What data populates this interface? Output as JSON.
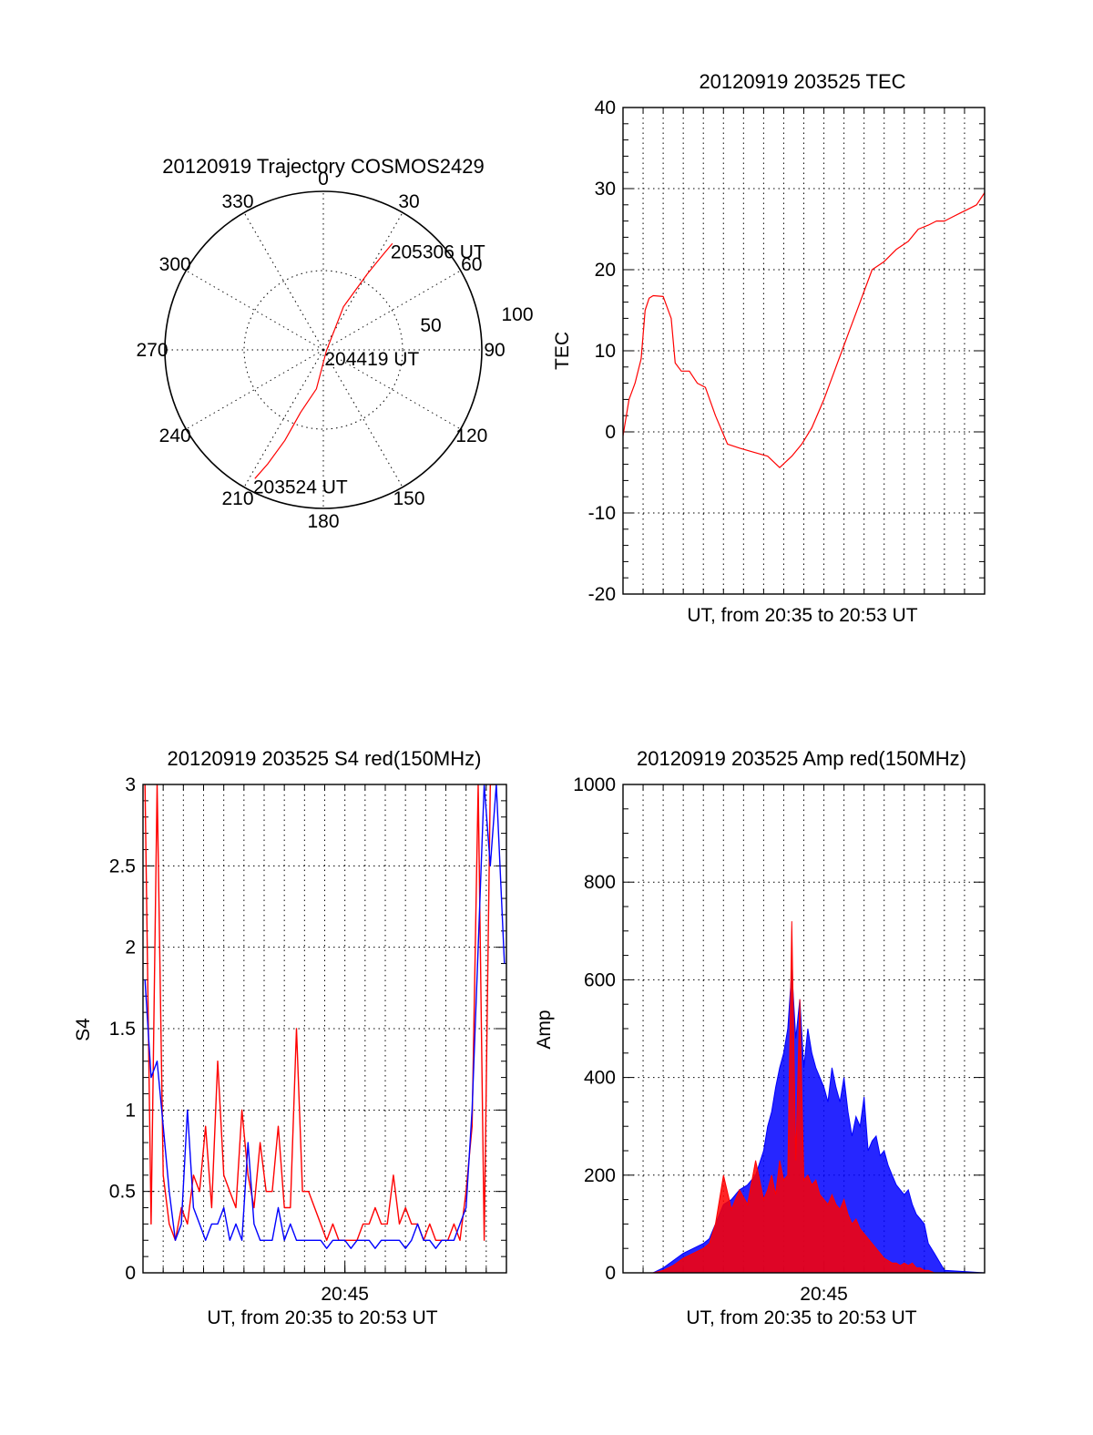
{
  "colors": {
    "red": "#ff0000",
    "blue": "#0000ff",
    "axis": "#000000",
    "grid": "#000000"
  },
  "chart_data": [
    {
      "id": "trajectory",
      "type": "polar",
      "title": "20120919 Trajectory COSMOS2429",
      "angle_labels": [
        "0",
        "30",
        "60",
        "90",
        "120",
        "150",
        "180",
        "210",
        "240",
        "270",
        "300",
        "330"
      ],
      "radius_labels": [
        "50",
        "100"
      ],
      "radius_max": 100,
      "grid": true,
      "series": [
        {
          "color": "red",
          "points_az_r": [
            [
              208,
              92
            ],
            [
              206,
              80
            ],
            [
              203,
              62
            ],
            [
              200,
              42
            ],
            [
              190,
              25
            ],
            [
              105,
              2
            ],
            [
              25,
              30
            ],
            [
              30,
              55
            ],
            [
              32,
              70
            ],
            [
              33,
              80
            ]
          ]
        }
      ],
      "annotations": [
        {
          "text": "203524 UT",
          "az": 208,
          "r": 92
        },
        {
          "text": "204419 UT",
          "az": 105,
          "r": 2
        },
        {
          "text": "205306 UT",
          "az": 33,
          "r": 80
        }
      ]
    },
    {
      "id": "tec",
      "type": "line",
      "title": "20120919 203525 TEC",
      "xlabel": "UT, from 20:35 to 20:53 UT",
      "ylabel": "TEC",
      "xlim": [
        0,
        18
      ],
      "ylim": [
        -20,
        40
      ],
      "y_ticks": [
        -20,
        -10,
        0,
        10,
        20,
        30,
        40
      ],
      "x_ticks": [],
      "grid": true,
      "series": [
        {
          "color": "red",
          "x": [
            0,
            0.3,
            0.6,
            0.9,
            1.0,
            1.1,
            1.3,
            1.5,
            2.0,
            2.4,
            2.6,
            2.9,
            3.3,
            3.7,
            4.1,
            4.6,
            5.2,
            5.8,
            6.5,
            7.2,
            7.8,
            8.4,
            8.9,
            9.4,
            10.0,
            10.6,
            11.2,
            11.8,
            12.4,
            13.0,
            13.6,
            14.2,
            14.7,
            15.2,
            15.6,
            16.0,
            16.4,
            16.8,
            17.2,
            17.6,
            18.0
          ],
          "y": [
            -0.5,
            4,
            6,
            9,
            12,
            15,
            16.5,
            16.8,
            16.7,
            14,
            8.5,
            7.5,
            7.5,
            6,
            5.5,
            2,
            -1.5,
            -2,
            -2.5,
            -3,
            -4.4,
            -3,
            -1.5,
            0.5,
            4,
            8,
            12,
            16,
            20,
            21,
            22.5,
            23.5,
            25,
            25.5,
            26,
            26,
            26.5,
            27,
            27.5,
            28,
            29.5
          ]
        }
      ]
    },
    {
      "id": "s4",
      "type": "line",
      "title": "20120919 203525 S4 red(150MHz)",
      "xlabel": "UT, from 20:35 to 20:53 UT",
      "ylabel": "S4",
      "xlim": [
        0,
        18
      ],
      "ylim": [
        0,
        3
      ],
      "y_ticks": [
        0,
        0.5,
        1,
        1.5,
        2,
        2.5,
        3
      ],
      "y_tick_labels": [
        "0",
        "0.5",
        "1",
        "1.5",
        "2",
        "2.5",
        "3"
      ],
      "x_ticks": [
        10
      ],
      "x_tick_labels": [
        "20:45"
      ],
      "grid": true,
      "series": [
        {
          "color": "red",
          "x": [
            0.1,
            0.4,
            0.7,
            1.0,
            1.3,
            1.6,
            1.9,
            2.2,
            2.5,
            2.8,
            3.1,
            3.4,
            3.7,
            4.0,
            4.3,
            4.6,
            4.9,
            5.2,
            5.5,
            5.8,
            6.1,
            6.4,
            6.7,
            7.0,
            7.3,
            7.6,
            7.9,
            8.2,
            8.5,
            8.8,
            9.1,
            9.4,
            9.7,
            10.0,
            10.3,
            10.6,
            10.9,
            11.2,
            11.5,
            11.8,
            12.1,
            12.4,
            12.7,
            13.0,
            13.3,
            13.6,
            13.9,
            14.2,
            14.5,
            14.8,
            15.1,
            15.4,
            15.7,
            16.0,
            16.3,
            16.6,
            16.9,
            17.2,
            17.5
          ],
          "y": [
            3,
            0.3,
            3,
            0.6,
            0.3,
            0.2,
            0.4,
            0.3,
            0.6,
            0.5,
            0.9,
            0.4,
            1.3,
            0.6,
            0.5,
            0.4,
            1.0,
            0.6,
            0.4,
            0.8,
            0.5,
            0.5,
            0.9,
            0.4,
            0.4,
            1.5,
            0.5,
            0.5,
            0.4,
            0.3,
            0.2,
            0.3,
            0.2,
            0.2,
            0.2,
            0.2,
            0.3,
            0.3,
            0.4,
            0.3,
            0.3,
            0.6,
            0.3,
            0.4,
            0.3,
            0.3,
            0.2,
            0.3,
            0.2,
            0.2,
            0.2,
            0.3,
            0.2,
            0.5,
            0.9,
            3,
            0.2,
            3,
            3
          ]
        },
        {
          "color": "blue",
          "x": [
            0.1,
            0.4,
            0.7,
            1.0,
            1.3,
            1.6,
            1.9,
            2.2,
            2.5,
            2.8,
            3.1,
            3.4,
            3.7,
            4.0,
            4.3,
            4.6,
            4.9,
            5.2,
            5.5,
            5.8,
            6.1,
            6.4,
            6.7,
            7.0,
            7.3,
            7.6,
            7.9,
            8.2,
            8.5,
            8.8,
            9.1,
            9.4,
            9.7,
            10.0,
            10.3,
            10.6,
            10.9,
            11.2,
            11.5,
            11.8,
            12.1,
            12.4,
            12.7,
            13.0,
            13.3,
            13.6,
            13.9,
            14.2,
            14.5,
            14.8,
            15.1,
            15.4,
            15.7,
            16.0,
            16.3,
            16.6,
            16.9,
            17.2,
            17.5,
            17.9
          ],
          "y": [
            1.8,
            1.2,
            1.3,
            0.9,
            0.5,
            0.2,
            0.3,
            1.0,
            0.4,
            0.3,
            0.2,
            0.3,
            0.3,
            0.4,
            0.2,
            0.3,
            0.2,
            0.8,
            0.3,
            0.2,
            0.2,
            0.2,
            0.4,
            0.2,
            0.3,
            0.2,
            0.2,
            0.2,
            0.2,
            0.2,
            0.15,
            0.2,
            0.2,
            0.2,
            0.15,
            0.2,
            0.2,
            0.2,
            0.15,
            0.2,
            0.2,
            0.2,
            0.2,
            0.15,
            0.2,
            0.3,
            0.2,
            0.2,
            0.15,
            0.2,
            0.2,
            0.2,
            0.3,
            0.4,
            1.0,
            2.0,
            3,
            2.5,
            3,
            1.9
          ]
        }
      ]
    },
    {
      "id": "amp",
      "type": "line",
      "title": "20120919 203525 Amp red(150MHz)",
      "xlabel": "UT, from 20:35 to 20:53 UT",
      "ylabel": "Amp",
      "xlim": [
        0,
        18
      ],
      "ylim": [
        0,
        1000
      ],
      "y_ticks": [
        0,
        200,
        400,
        600,
        800,
        1000
      ],
      "x_ticks": [
        10
      ],
      "x_tick_labels": [
        "20:45"
      ],
      "grid": true,
      "series": [
        {
          "color": "blue",
          "x": [
            0,
            1.5,
            2.0,
            2.5,
            3.0,
            3.5,
            4.0,
            4.3,
            4.6,
            5.0,
            5.4,
            5.8,
            6.2,
            6.6,
            7.0,
            7.2,
            7.4,
            7.6,
            7.8,
            8.0,
            8.2,
            8.4,
            8.6,
            8.8,
            9.0,
            9.2,
            9.4,
            9.6,
            9.8,
            10.0,
            10.2,
            10.4,
            10.6,
            10.8,
            11.0,
            11.2,
            11.4,
            11.6,
            11.8,
            12.0,
            12.2,
            12.4,
            12.6,
            12.8,
            13.0,
            13.2,
            13.4,
            13.6,
            13.8,
            14.0,
            14.2,
            14.4,
            14.6,
            14.8,
            15.0,
            15.2,
            15.5,
            16.0,
            18.0
          ],
          "y": [
            0,
            0,
            10,
            25,
            40,
            50,
            60,
            70,
            100,
            140,
            150,
            170,
            180,
            200,
            250,
            300,
            330,
            380,
            420,
            450,
            500,
            620,
            480,
            560,
            420,
            500,
            450,
            420,
            400,
            380,
            350,
            420,
            380,
            350,
            400,
            330,
            280,
            320,
            300,
            360,
            250,
            270,
            280,
            240,
            250,
            220,
            200,
            180,
            170,
            160,
            170,
            140,
            120,
            110,
            100,
            60,
            40,
            5,
            0
          ]
        },
        {
          "color": "red",
          "x": [
            0,
            1.5,
            2.0,
            2.5,
            3.0,
            3.5,
            4.0,
            4.3,
            4.6,
            5.0,
            5.4,
            5.8,
            6.2,
            6.6,
            7.0,
            7.2,
            7.4,
            7.6,
            7.8,
            8.0,
            8.2,
            8.4,
            8.6,
            8.8,
            9.0,
            9.2,
            9.4,
            9.6,
            9.8,
            10.0,
            10.2,
            10.4,
            10.6,
            10.8,
            11.0,
            11.2,
            11.4,
            11.6,
            11.8,
            12.0,
            12.2,
            12.4,
            12.6,
            12.8,
            13.0,
            13.2,
            13.4,
            13.6,
            13.8,
            14.0,
            14.2,
            14.4,
            14.6,
            14.8,
            15.0,
            15.2,
            15.5,
            16.0,
            18.0
          ],
          "y": [
            0,
            0,
            5,
            15,
            30,
            40,
            50,
            60,
            100,
            200,
            130,
            170,
            140,
            230,
            150,
            170,
            200,
            160,
            230,
            190,
            200,
            720,
            230,
            560,
            190,
            200,
            180,
            190,
            160,
            150,
            140,
            160,
            140,
            130,
            150,
            120,
            100,
            110,
            90,
            80,
            70,
            60,
            50,
            40,
            30,
            25,
            20,
            20,
            15,
            20,
            15,
            20,
            10,
            10,
            5,
            5,
            0,
            0,
            0
          ]
        }
      ]
    }
  ]
}
